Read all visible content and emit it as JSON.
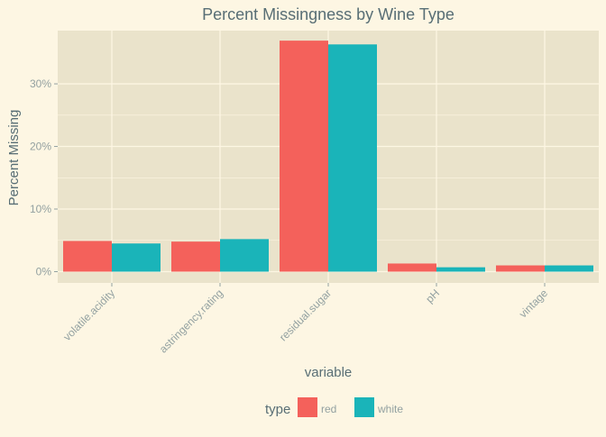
{
  "chart_data": {
    "type": "bar",
    "title": "Percent Missingness by Wine Type",
    "xlabel": "variable",
    "ylabel": "Percent Missing",
    "categories": [
      "volatile.acidity",
      "astringency.rating",
      "residual.sugar",
      "pH",
      "vintage"
    ],
    "series": [
      {
        "name": "red",
        "values": [
          4.9,
          4.8,
          36.9,
          1.3,
          1.0
        ],
        "color": "#f4615b"
      },
      {
        "name": "white",
        "values": [
          4.5,
          5.2,
          36.3,
          0.7,
          1.0
        ],
        "color": "#1ab4b9"
      }
    ],
    "ylim": [
      -1.8,
      38.5
    ],
    "yticks": [
      0,
      10,
      20,
      30
    ],
    "ytick_labels": [
      "0%",
      "10%",
      "20%",
      "30%"
    ],
    "legend": {
      "title": "type",
      "position": "bottom"
    },
    "grid": true,
    "colors": {
      "background": "#fdf6e3",
      "panel": "#eae3cb",
      "grid": "#fdf6e3"
    }
  }
}
